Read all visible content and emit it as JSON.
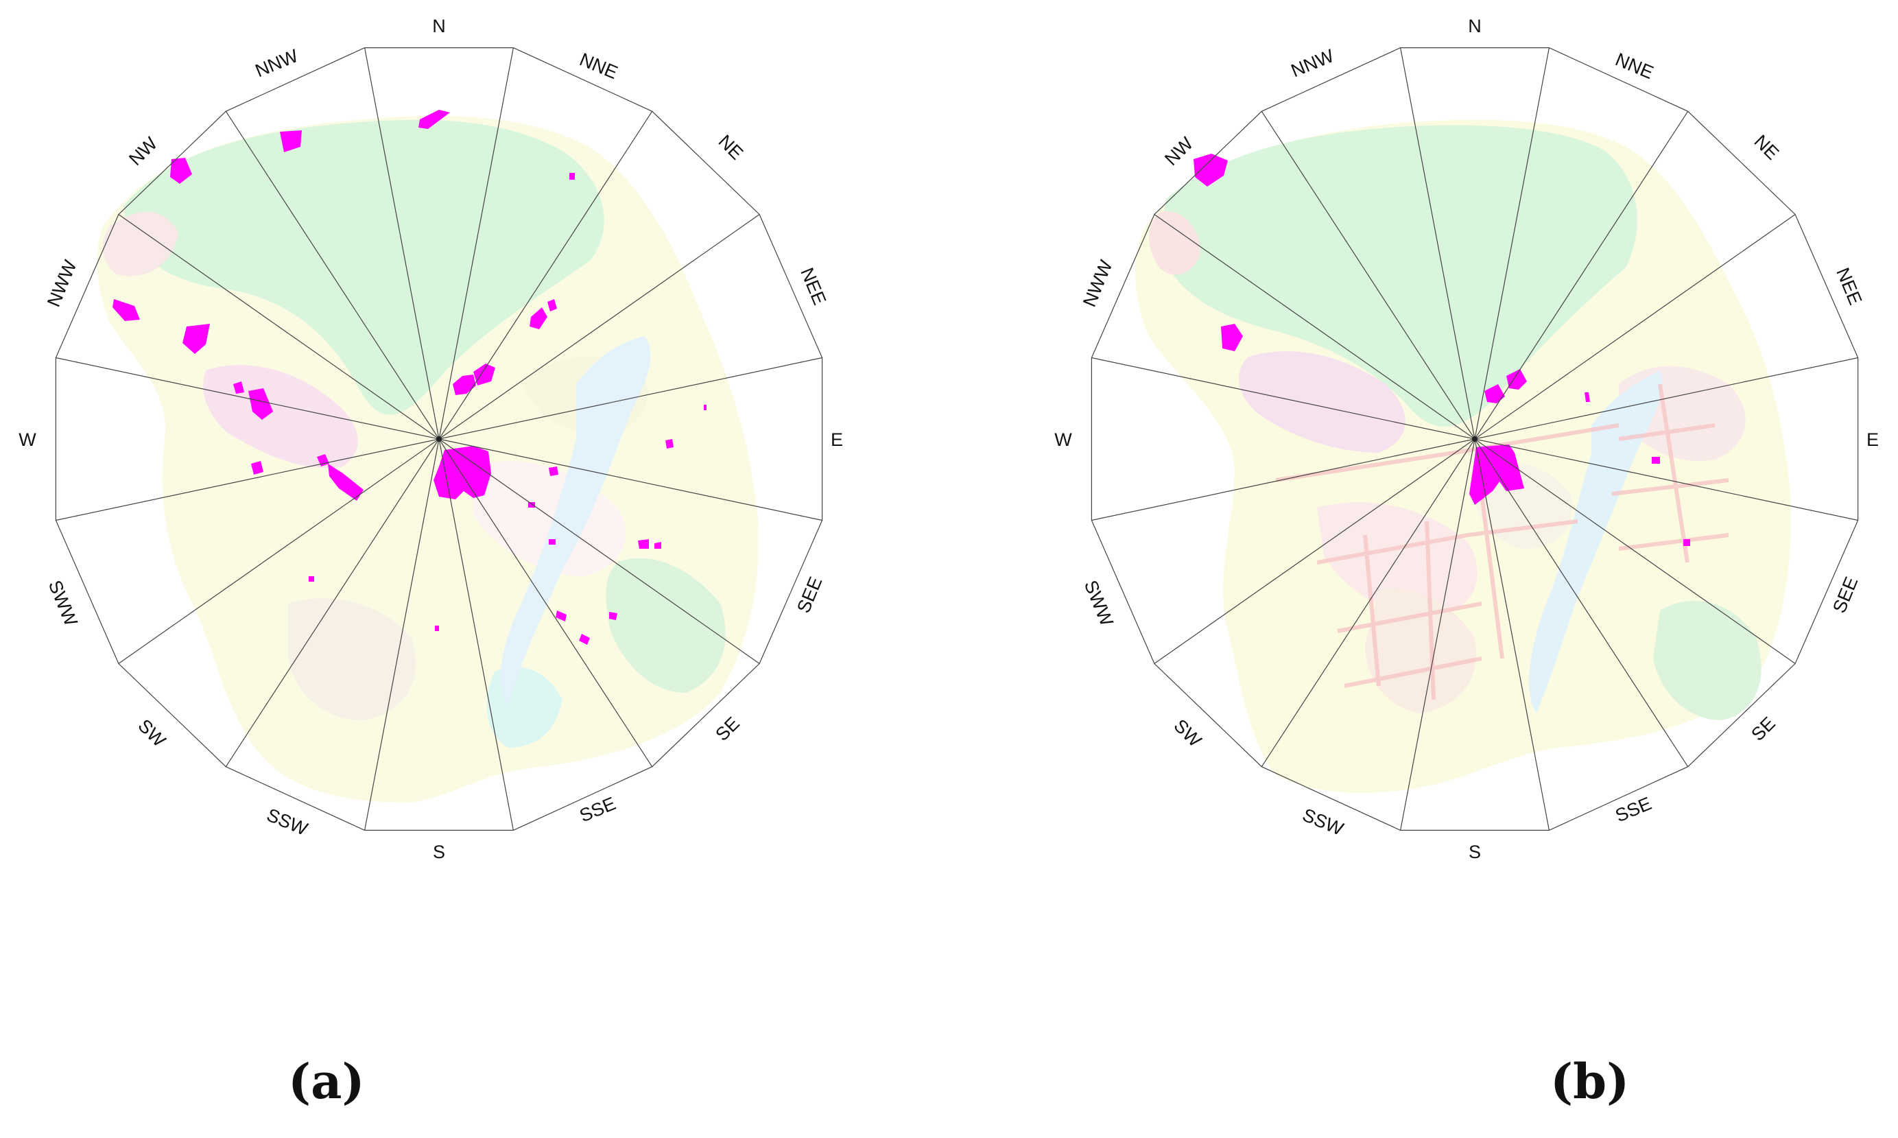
{
  "figure": {
    "directions": [
      "N",
      "NNE",
      "NE",
      "NEE",
      "E",
      "SEE",
      "SE",
      "SSE",
      "S",
      "SSW",
      "SW",
      "SWW",
      "W",
      "NWW",
      "NW",
      "NNW"
    ],
    "panels": [
      {
        "id": "a",
        "label": "(a)"
      },
      {
        "id": "b",
        "label": "(b)"
      }
    ],
    "colors": {
      "highlight": "#ff00ff",
      "frame": "#444444",
      "green_landuse": "#d8f5d8",
      "yellow_landuse": "#fbfbe0",
      "pink_landuse": "#fadada",
      "blue_water": "#dff0fb"
    }
  }
}
